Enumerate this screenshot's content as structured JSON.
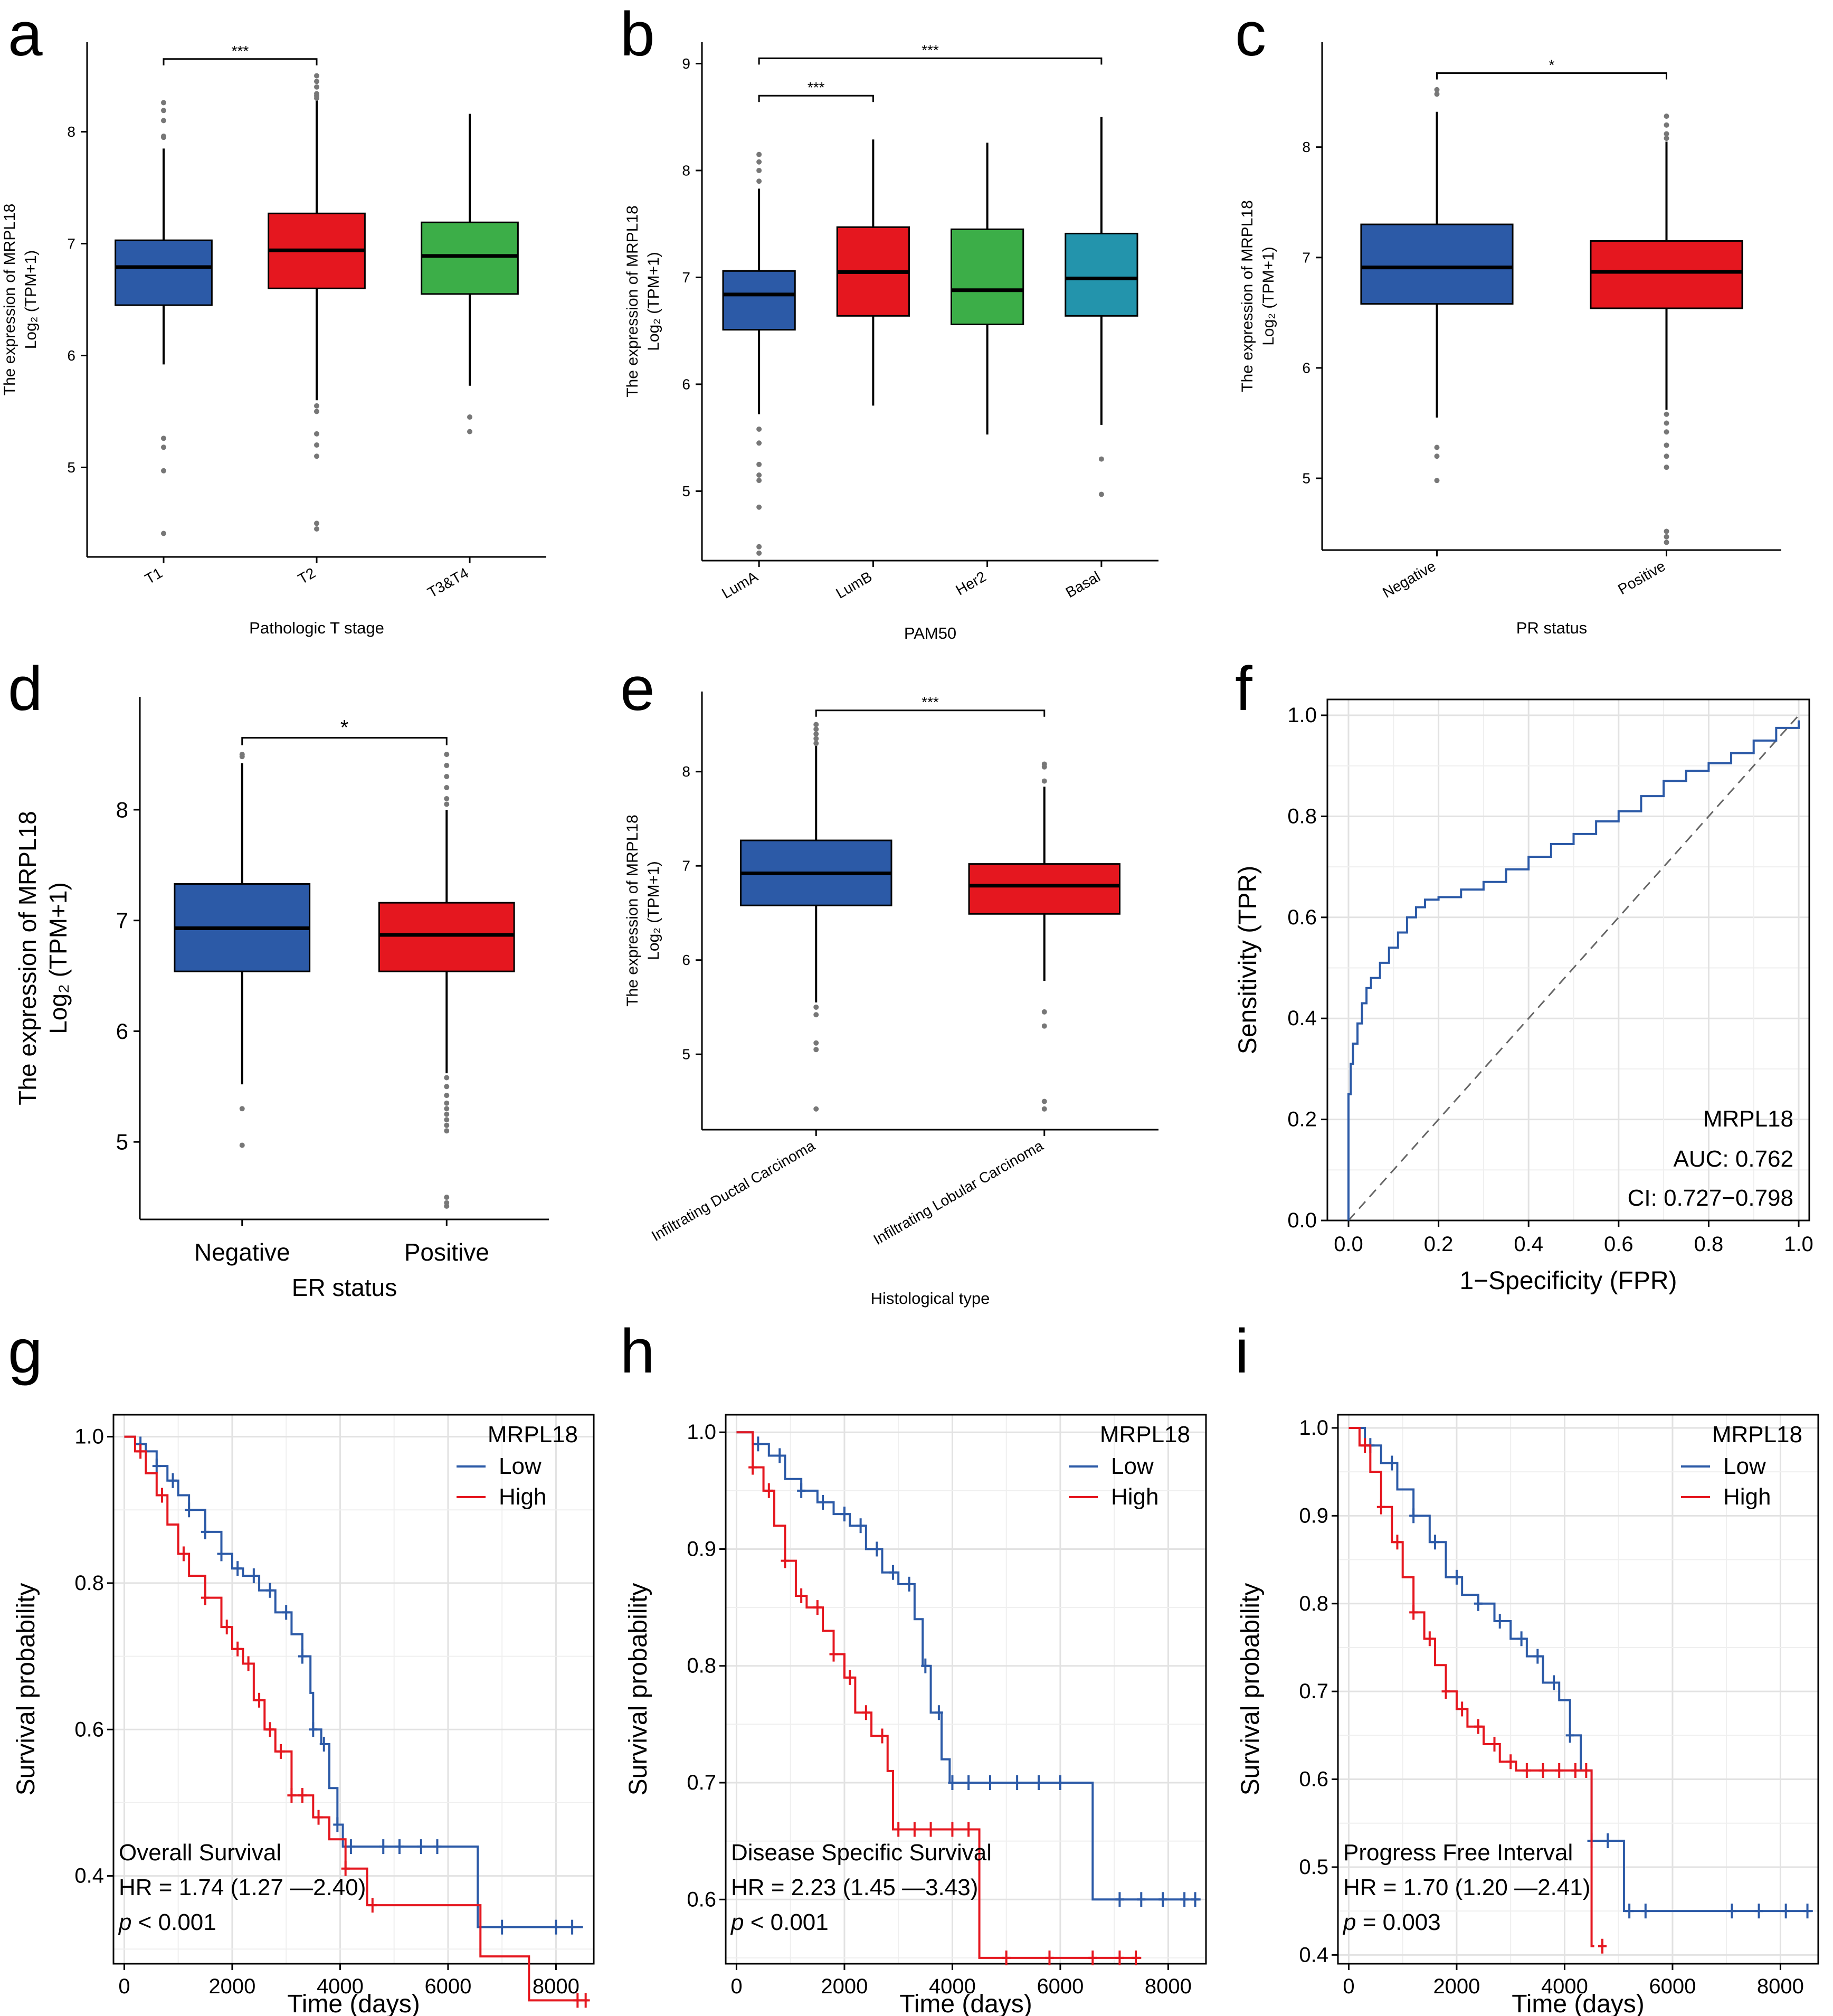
{
  "chart_data": [
    {
      "id": "a",
      "type": "box",
      "panel_label": "a",
      "title": "",
      "xlabel": "Pathologic T stage",
      "ylabel_line1": "The expression of MRPL18",
      "ylabel_line2": "Log₂ (TPM+1)",
      "ylim": [
        4.2,
        8.8
      ],
      "yticks": [
        5,
        6,
        7,
        8
      ],
      "categories": [
        "T1",
        "T2",
        "T3&T4"
      ],
      "colors": [
        "#2C5AA7",
        "#E5171F",
        "#3CAE48"
      ],
      "boxes": [
        {
          "q1": 6.45,
          "median": 6.79,
          "q3": 7.03,
          "lo": 5.92,
          "hi": 7.85,
          "outliers": [
            4.41,
            4.97,
            5.18,
            5.26,
            7.95,
            7.96,
            8.1,
            8.19,
            8.26
          ]
        },
        {
          "q1": 6.6,
          "median": 6.94,
          "q3": 7.27,
          "lo": 5.6,
          "hi": 8.28,
          "outliers": [
            4.45,
            4.5,
            5.1,
            5.2,
            5.3,
            5.5,
            5.55,
            8.3,
            8.32,
            8.34,
            8.4,
            8.45,
            8.5
          ]
        },
        {
          "q1": 6.55,
          "median": 6.89,
          "q3": 7.19,
          "lo": 5.73,
          "hi": 8.16,
          "outliers": [
            5.32,
            5.45
          ]
        }
      ],
      "brackets": [
        {
          "from": 0,
          "to": 1,
          "label": "***"
        }
      ]
    },
    {
      "id": "b",
      "type": "box",
      "panel_label": "b",
      "title": "",
      "xlabel": "PAM50",
      "ylabel_line1": "The expression of MRPL18",
      "ylabel_line2": "Log₂ (TPM+1)",
      "ylim": [
        4.35,
        9.2
      ],
      "yticks": [
        5,
        6,
        7,
        8,
        9
      ],
      "categories": [
        "LumA",
        "LumB",
        "Her2",
        "Basal"
      ],
      "colors": [
        "#2C5AA7",
        "#E5171F",
        "#3CAE48",
        "#2394AC"
      ],
      "boxes": [
        {
          "q1": 6.51,
          "median": 6.84,
          "q3": 7.06,
          "lo": 5.72,
          "hi": 7.83,
          "outliers": [
            4.42,
            4.48,
            4.85,
            5.1,
            5.15,
            5.25,
            5.45,
            5.58,
            7.9,
            8.0,
            8.08,
            8.15
          ]
        },
        {
          "q1": 6.64,
          "median": 7.05,
          "q3": 7.47,
          "lo": 5.8,
          "hi": 8.29,
          "outliers": []
        },
        {
          "q1": 6.56,
          "median": 6.88,
          "q3": 7.45,
          "lo": 5.53,
          "hi": 8.26,
          "outliers": []
        },
        {
          "q1": 6.64,
          "median": 6.99,
          "q3": 7.41,
          "lo": 5.62,
          "hi": 8.5,
          "outliers": [
            4.97,
            5.3
          ]
        }
      ],
      "brackets": [
        {
          "from": 0,
          "to": 1,
          "label": "***"
        },
        {
          "from": 0,
          "to": 3,
          "label": "***"
        }
      ]
    },
    {
      "id": "c",
      "type": "box",
      "panel_label": "c",
      "title": "",
      "xlabel": "PR status",
      "ylabel_line1": "The expression of MRPL18",
      "ylabel_line2": "Log₂ (TPM+1)",
      "ylim": [
        4.35,
        8.95
      ],
      "yticks": [
        5,
        6,
        7,
        8
      ],
      "categories": [
        "Negative",
        "Positive"
      ],
      "colors": [
        "#2C5AA7",
        "#E5171F"
      ],
      "boxes": [
        {
          "q1": 6.58,
          "median": 6.91,
          "q3": 7.3,
          "lo": 5.55,
          "hi": 8.32,
          "outliers": [
            4.98,
            5.2,
            5.28,
            8.48,
            8.52
          ]
        },
        {
          "q1": 6.54,
          "median": 6.87,
          "q3": 7.15,
          "lo": 5.62,
          "hi": 8.05,
          "outliers": [
            4.42,
            4.47,
            4.52,
            5.1,
            5.2,
            5.3,
            5.42,
            5.5,
            5.58,
            8.08,
            8.12,
            8.2,
            8.28
          ]
        }
      ],
      "brackets": [
        {
          "from": 0,
          "to": 1,
          "label": "*"
        }
      ]
    },
    {
      "id": "d",
      "type": "box",
      "panel_label": "d",
      "title": "",
      "xlabel": "ER status",
      "ylabel_line1": "The expression of MRPL18",
      "ylabel_line2": "Log₂ (TPM+1)",
      "ylim": [
        4.3,
        9.02
      ],
      "yticks": [
        5,
        6,
        7,
        8
      ],
      "categories": [
        "Negative",
        "Positive"
      ],
      "colors": [
        "#2C5AA7",
        "#E5171F"
      ],
      "boxes": [
        {
          "q1": 6.54,
          "median": 6.93,
          "q3": 7.33,
          "lo": 5.52,
          "hi": 8.42,
          "outliers": [
            4.97,
            5.3,
            8.48,
            8.5
          ]
        },
        {
          "q1": 6.54,
          "median": 6.87,
          "q3": 7.16,
          "lo": 5.62,
          "hi": 8.0,
          "outliers": [
            4.42,
            4.45,
            4.5,
            5.1,
            5.15,
            5.2,
            5.25,
            5.3,
            5.35,
            5.42,
            5.5,
            5.58,
            8.05,
            8.1,
            8.2,
            8.3,
            8.4,
            8.5
          ]
        }
      ],
      "brackets": [
        {
          "from": 0,
          "to": 1,
          "label": "*"
        }
      ]
    },
    {
      "id": "e",
      "type": "box",
      "panel_label": "e",
      "title": "",
      "xlabel": "Histological type",
      "ylabel_line1": "The expression of MRPL18",
      "ylabel_line2": "Log₂ (TPM+1)",
      "ylim": [
        4.2,
        8.85
      ],
      "yticks": [
        5,
        6,
        7,
        8
      ],
      "categories": [
        "Infiltrating Ductal Carcinoma",
        "Infiltrating Lobular Carcinoma"
      ],
      "colors": [
        "#2C5AA7",
        "#E5171F"
      ],
      "boxes": [
        {
          "q1": 6.58,
          "median": 6.92,
          "q3": 7.27,
          "lo": 5.55,
          "hi": 8.28,
          "outliers": [
            4.42,
            5.05,
            5.12,
            5.42,
            5.5,
            8.3,
            8.35,
            8.4,
            8.45,
            8.5
          ]
        },
        {
          "q1": 6.49,
          "median": 6.79,
          "q3": 7.02,
          "lo": 5.78,
          "hi": 7.84,
          "outliers": [
            4.42,
            4.5,
            5.3,
            5.45,
            7.9,
            8.05,
            8.08
          ]
        }
      ],
      "brackets": [
        {
          "from": 0,
          "to": 1,
          "label": "***"
        }
      ]
    },
    {
      "id": "f",
      "type": "roc",
      "panel_label": "f",
      "xlabel": "1−Specificity (FPR)",
      "ylabel": "Sensitivity (TPR)",
      "xlim": [
        0,
        1
      ],
      "ylim": [
        0,
        1
      ],
      "xticks": [
        "0.0",
        "0.2",
        "0.4",
        "0.6",
        "0.8",
        "1.0"
      ],
      "yticks": [
        "0.0",
        "0.2",
        "0.4",
        "0.6",
        "0.8",
        "1.0"
      ],
      "gene": "MRPL18",
      "auc_label": "AUC: 0.762",
      "ci_label": "CI: 0.727−0.798",
      "curve_color": "#2C5AA7",
      "fpr": [
        0,
        0,
        0.005,
        0.01,
        0.02,
        0.03,
        0.04,
        0.05,
        0.07,
        0.09,
        0.11,
        0.13,
        0.15,
        0.17,
        0.2,
        0.25,
        0.3,
        0.35,
        0.4,
        0.45,
        0.5,
        0.55,
        0.6,
        0.65,
        0.7,
        0.75,
        0.8,
        0.85,
        0.9,
        0.95,
        1.0
      ],
      "tpr": [
        0,
        0.25,
        0.31,
        0.35,
        0.39,
        0.43,
        0.46,
        0.48,
        0.51,
        0.54,
        0.57,
        0.6,
        0.62,
        0.635,
        0.64,
        0.655,
        0.67,
        0.695,
        0.72,
        0.745,
        0.765,
        0.79,
        0.81,
        0.84,
        0.87,
        0.89,
        0.905,
        0.925,
        0.95,
        0.975,
        0.99
      ]
    },
    {
      "id": "g",
      "type": "km",
      "panel_label": "g",
      "xlabel": "Time (days)",
      "ylabel": "Survival probability",
      "xlim": [
        -200,
        8700
      ],
      "ylim": [
        0.28,
        1.03
      ],
      "xticks": [
        0,
        2000,
        4000,
        6000,
        8000
      ],
      "yticks": [
        "0.4",
        "0.6",
        "0.8",
        "1.0"
      ],
      "legend_title": "MRPL18",
      "annotation_title": "Overall Survival",
      "annotation_hr": "HR = 1.74 (1.27 —2.40)",
      "annotation_p_symbol": "p",
      "annotation_p_value": "< 0.001",
      "series": [
        {
          "name": "Low",
          "color": "#2C5AA7",
          "t": [
            0,
            200,
            400,
            600,
            800,
            1000,
            1200,
            1500,
            1800,
            2000,
            2200,
            2500,
            2800,
            3100,
            3300,
            3450,
            3500,
            3650,
            3800,
            3950,
            4050,
            6550,
            8500
          ],
          "s": [
            1,
            0.99,
            0.98,
            0.96,
            0.94,
            0.92,
            0.9,
            0.87,
            0.84,
            0.82,
            0.81,
            0.79,
            0.76,
            0.73,
            0.7,
            0.65,
            0.6,
            0.58,
            0.52,
            0.47,
            0.44,
            0.33,
            0.33
          ],
          "censor": [
            300,
            600,
            900,
            1200,
            1500,
            1800,
            2100,
            2400,
            2700,
            3000,
            3300,
            3500,
            3700,
            3950,
            4200,
            4800,
            5100,
            5500,
            5800,
            7000,
            8000,
            8300
          ]
        },
        {
          "name": "High",
          "color": "#E5171F",
          "t": [
            0,
            200,
            400,
            600,
            800,
            1000,
            1200,
            1500,
            1800,
            2000,
            2200,
            2400,
            2600,
            2800,
            3100,
            3500,
            3800,
            4100,
            4500,
            5200,
            6600,
            7500,
            8600
          ],
          "s": [
            1,
            0.98,
            0.95,
            0.92,
            0.88,
            0.84,
            0.81,
            0.78,
            0.74,
            0.71,
            0.69,
            0.64,
            0.6,
            0.57,
            0.51,
            0.48,
            0.45,
            0.41,
            0.36,
            0.36,
            0.29,
            0.23,
            0.23
          ],
          "censor": [
            300,
            700,
            1100,
            1500,
            1900,
            2100,
            2300,
            2500,
            2700,
            2900,
            3100,
            3300,
            3600,
            4100,
            4600,
            8400,
            8550
          ]
        }
      ]
    },
    {
      "id": "h",
      "type": "km",
      "panel_label": "h",
      "xlabel": "Time (days)",
      "ylabel": "Survival probability",
      "xlim": [
        -200,
        8700
      ],
      "ylim": [
        0.545,
        1.015
      ],
      "xticks": [
        0,
        2000,
        4000,
        6000,
        8000
      ],
      "yticks": [
        "0.6",
        "0.7",
        "0.8",
        "0.9",
        "1.0"
      ],
      "legend_title": "MRPL18",
      "annotation_title": "Disease Specific Survival",
      "annotation_hr": "HR = 2.23 (1.45 —3.43)",
      "annotation_p_symbol": "p",
      "annotation_p_value": "< 0.001",
      "series": [
        {
          "name": "Low",
          "color": "#2C5AA7",
          "t": [
            0,
            300,
            600,
            900,
            1200,
            1500,
            1800,
            2100,
            2400,
            2700,
            3000,
            3300,
            3450,
            3600,
            3800,
            3950,
            6600,
            8600
          ],
          "s": [
            1,
            0.99,
            0.98,
            0.96,
            0.95,
            0.94,
            0.93,
            0.92,
            0.9,
            0.88,
            0.87,
            0.84,
            0.8,
            0.76,
            0.72,
            0.7,
            0.6,
            0.6
          ],
          "censor": [
            400,
            800,
            1200,
            1600,
            2000,
            2300,
            2600,
            2900,
            3200,
            3500,
            3750,
            4000,
            4300,
            4700,
            5200,
            5600,
            6000,
            7100,
            7500,
            7900,
            8300,
            8500
          ]
        },
        {
          "name": "High",
          "color": "#E5171F",
          "t": [
            0,
            300,
            500,
            700,
            900,
            1100,
            1300,
            1600,
            1800,
            2000,
            2200,
            2500,
            2800,
            2900,
            4400,
            4500,
            7500
          ],
          "s": [
            1,
            0.97,
            0.95,
            0.92,
            0.89,
            0.86,
            0.85,
            0.83,
            0.81,
            0.79,
            0.76,
            0.74,
            0.71,
            0.66,
            0.66,
            0.55,
            0.55
          ],
          "censor": [
            300,
            600,
            900,
            1200,
            1500,
            1800,
            2100,
            2400,
            2700,
            3000,
            3300,
            3600,
            4000,
            4300,
            5000,
            5800,
            6600,
            7100,
            7400
          ]
        }
      ]
    },
    {
      "id": "i",
      "type": "km",
      "panel_label": "i",
      "xlabel": "Time (days)",
      "ylabel": "Survival probability",
      "xlim": [
        -200,
        8700
      ],
      "ylim": [
        0.39,
        1.015
      ],
      "xticks": [
        0,
        2000,
        4000,
        6000,
        8000
      ],
      "yticks": [
        "0.4",
        "0.5",
        "0.6",
        "0.7",
        "0.8",
        "0.9",
        "1.0"
      ],
      "legend_title": "MRPL18",
      "annotation_title": "Progress Free Interval",
      "annotation_hr": "HR = 1.70 (1.20 —2.41)",
      "annotation_p_symbol": "p",
      "annotation_p_value": "= 0.003",
      "series": [
        {
          "name": "Low",
          "color": "#2C5AA7",
          "t": [
            0,
            300,
            600,
            900,
            1200,
            1500,
            1800,
            2100,
            2400,
            2700,
            3000,
            3300,
            3600,
            3900,
            4100,
            4300,
            4500,
            5100,
            8600
          ],
          "s": [
            1,
            0.98,
            0.96,
            0.93,
            0.9,
            0.87,
            0.83,
            0.81,
            0.8,
            0.78,
            0.76,
            0.74,
            0.71,
            0.69,
            0.65,
            0.61,
            0.53,
            0.45,
            0.45
          ],
          "censor": [
            400,
            800,
            1200,
            1600,
            2000,
            2400,
            2800,
            3200,
            3500,
            3800,
            4100,
            4500,
            4800,
            5200,
            5500,
            7100,
            7600,
            8100,
            8500
          ]
        },
        {
          "name": "High",
          "color": "#E5171F",
          "t": [
            0,
            200,
            400,
            600,
            800,
            1000,
            1200,
            1400,
            1600,
            1800,
            2000,
            2200,
            2500,
            2800,
            3100,
            3400,
            4500,
            4550
          ],
          "s": [
            1,
            0.98,
            0.95,
            0.91,
            0.87,
            0.83,
            0.79,
            0.76,
            0.73,
            0.7,
            0.68,
            0.66,
            0.64,
            0.62,
            0.61,
            0.61,
            0.41,
            0.41
          ],
          "censor": [
            300,
            600,
            900,
            1200,
            1500,
            1800,
            2100,
            2400,
            2700,
            3000,
            3300,
            3600,
            3900,
            4200,
            4400,
            4700
          ]
        }
      ]
    }
  ]
}
